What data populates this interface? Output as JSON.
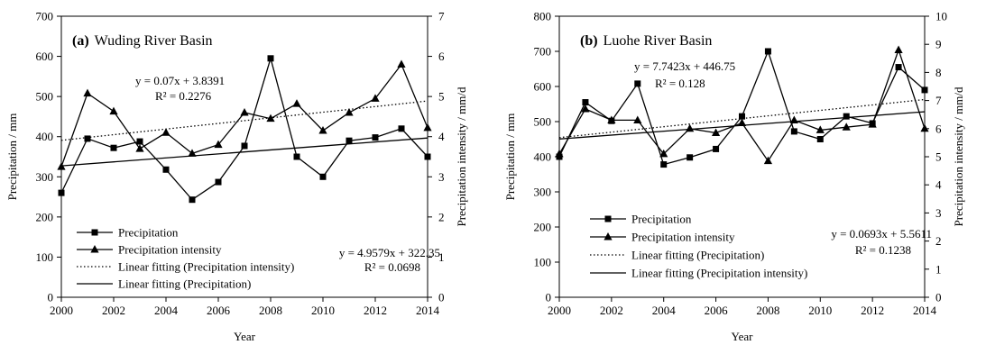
{
  "chart_data": [
    {
      "type": "line",
      "panel_label": "(a)",
      "title": "Wuding River Basin",
      "xlabel": "Year",
      "ylabel": "Precipitation / mm",
      "y2label": "Precipitation intensity / mm/d",
      "xlim": [
        2000,
        2014
      ],
      "ylim": [
        0,
        700
      ],
      "y2lim": [
        0,
        7
      ],
      "x_ticks": [
        "2000",
        "2002",
        "2004",
        "2006",
        "2008",
        "2010",
        "2012",
        "2014"
      ],
      "y_ticks": [
        "0",
        "100",
        "200",
        "300",
        "400",
        "500",
        "600",
        "700"
      ],
      "y2_ticks": [
        "0",
        "1",
        "2",
        "3",
        "4",
        "5",
        "6",
        "7"
      ],
      "x": [
        2000,
        2001,
        2002,
        2003,
        2004,
        2005,
        2006,
        2007,
        2008,
        2009,
        2010,
        2011,
        2012,
        2013,
        2014
      ],
      "series": [
        {
          "name": "Precipitation",
          "axis": "left",
          "marker": "square",
          "values": [
            260,
            395,
            372,
            388,
            318,
            243,
            287,
            377,
            595,
            350,
            300,
            390,
            398,
            420,
            350
          ]
        },
        {
          "name": "Precipitation intensity",
          "axis": "right",
          "marker": "triangle",
          "values": [
            3.25,
            5.08,
            4.63,
            3.7,
            4.1,
            3.58,
            3.8,
            4.6,
            4.45,
            4.82,
            4.15,
            4.6,
            4.95,
            5.8,
            4.22
          ]
        }
      ],
      "trendlines": [
        {
          "name": "Linear fitting (Precipitation intensity)",
          "axis": "right",
          "style": "dotted",
          "slope": 0.07,
          "intercept": 3.8391,
          "x_origin": 2000
        },
        {
          "name": "Linear fitting (Precipitation)",
          "axis": "left",
          "style": "solid",
          "slope": 4.9579,
          "intercept": 322.35,
          "x_origin": 2000
        }
      ],
      "annotations": [
        {
          "id": "eq-intensity",
          "text": "y = 0.07x + 3.8391"
        },
        {
          "id": "r2-intensity",
          "text": "R² = 0.2276"
        },
        {
          "id": "eq-precip",
          "text": "y = 4.9579x + 322.35"
        },
        {
          "id": "r2-precip",
          "text": "R² = 0.0698"
        }
      ],
      "legend": [
        "Precipitation",
        "Precipitation intensity",
        "Linear fitting (Precipitation intensity)",
        "Linear fitting (Precipitation)"
      ],
      "legend_position": "bottom-left",
      "grid": false
    },
    {
      "type": "line",
      "panel_label": "(b)",
      "title": "Luohe River Basin",
      "xlabel": "Year",
      "ylabel": "Precipitation / mm",
      "y2label": "Precipitation intensity / mm/d",
      "xlim": [
        2000,
        2014
      ],
      "ylim": [
        0,
        800
      ],
      "y2lim": [
        0,
        10
      ],
      "x_ticks": [
        "2000",
        "2002",
        "2004",
        "2006",
        "2008",
        "2010",
        "2012",
        "2014"
      ],
      "y_ticks": [
        "0",
        "100",
        "200",
        "300",
        "400",
        "500",
        "600",
        "700",
        "800"
      ],
      "y2_ticks": [
        "0",
        "1",
        "2",
        "3",
        "4",
        "5",
        "6",
        "7",
        "8",
        "9",
        "10"
      ],
      "x": [
        2000,
        2001,
        2002,
        2003,
        2004,
        2005,
        2006,
        2007,
        2008,
        2009,
        2010,
        2011,
        2012,
        2013,
        2014
      ],
      "series": [
        {
          "name": "Precipitation",
          "axis": "left",
          "marker": "square",
          "values": [
            400,
            555,
            502,
            608,
            378,
            398,
            422,
            515,
            700,
            472,
            450,
            515,
            495,
            655,
            590
          ]
        },
        {
          "name": "Precipitation intensity",
          "axis": "right",
          "marker": "triangle",
          "values": [
            5.1,
            6.7,
            6.3,
            6.3,
            5.1,
            6.0,
            5.85,
            6.2,
            4.85,
            6.3,
            5.95,
            6.05,
            6.15,
            8.8,
            6.0
          ]
        }
      ],
      "trendlines": [
        {
          "name": "Linear fitting (Precipitation)",
          "axis": "left",
          "style": "dotted",
          "slope": 7.7423,
          "intercept": 446.75,
          "x_origin": 2000
        },
        {
          "name": "Linear fitting (Precipitation intensity)",
          "axis": "right",
          "style": "solid",
          "slope": 0.0693,
          "intercept": 5.5611,
          "x_origin": 2000
        }
      ],
      "annotations": [
        {
          "id": "eq-precip",
          "text": "y = 7.7423x + 446.75"
        },
        {
          "id": "r2-precip",
          "text": "R² = 0.128"
        },
        {
          "id": "eq-intensity",
          "text": "y = 0.0693x + 5.5611"
        },
        {
          "id": "r2-intensity",
          "text": "R² = 0.1238"
        }
      ],
      "legend": [
        "Precipitation",
        "Precipitation intensity",
        "Linear fitting (Precipitation)",
        "Linear fitting (Precipitation intensity)"
      ],
      "legend_position": "bottom-left",
      "grid": false
    }
  ]
}
